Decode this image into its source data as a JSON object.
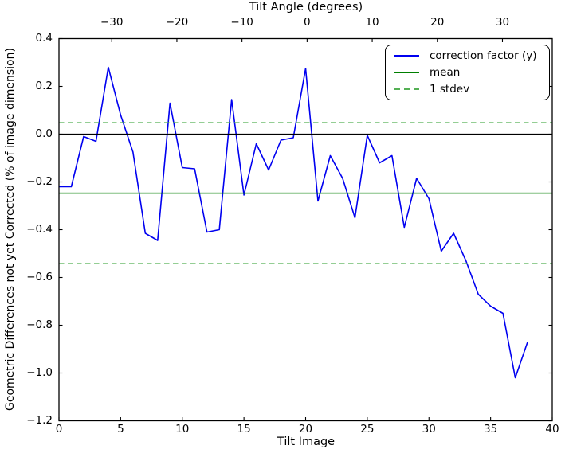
{
  "figure_title": "Tilt Angle (degrees)",
  "legend": {
    "items": [
      {
        "label": "correction factor (y)",
        "style": "solid",
        "color": "#0000f0"
      },
      {
        "label": "mean",
        "style": "solid",
        "color": "#007f00"
      },
      {
        "label": "1 stdev",
        "style": "dashed",
        "color": "#55b055"
      }
    ]
  },
  "chart_data": {
    "type": "line",
    "title": "",
    "xlabel": "Tilt Image",
    "ylabel": "Geometric Differences not yet Corrected (% of image dimension)",
    "xlim": [
      0,
      40
    ],
    "ylim": [
      -1.2,
      0.4
    ],
    "grid": false,
    "legend_position": "upper right",
    "colors": {
      "series": "#0000f0",
      "mean_line": "#007f00",
      "stdev_line": "#55b055",
      "zero_line": "#000000",
      "frame": "#000000",
      "background": "#ffffff"
    },
    "x_ticks": {
      "values": [
        0,
        5,
        10,
        15,
        20,
        25,
        30,
        35,
        40
      ],
      "labels": [
        "0",
        "5",
        "10",
        "15",
        "20",
        "25",
        "30",
        "35",
        "40"
      ]
    },
    "y_ticks": {
      "values": [
        0.4,
        0.2,
        0.0,
        -0.2,
        -0.4,
        -0.6,
        -0.8,
        -1.0,
        -1.2
      ],
      "labels": [
        "0.4",
        "0.2",
        "0.0",
        "−0.2",
        "−0.4",
        "−0.6",
        "−0.8",
        "−1.0",
        "−1.2"
      ]
    },
    "top_axis": {
      "label": "Tilt Angle (degrees)",
      "tick_labels": [
        "−30",
        "−20",
        "−10",
        "0",
        "10",
        "20",
        "30"
      ],
      "tick_values_degrees": [
        -30,
        -20,
        -10,
        0,
        10,
        20,
        30
      ],
      "tick_positions_in_x_units": [
        4.28,
        9.56,
        14.84,
        20.12,
        25.4,
        30.68,
        35.96
      ]
    },
    "series": [
      {
        "name": "correction factor (y)",
        "x": [
          0,
          1,
          2,
          3,
          4,
          5,
          6,
          7,
          8,
          9,
          10,
          11,
          12,
          13,
          14,
          15,
          16,
          17,
          18,
          19,
          20,
          21,
          22,
          23,
          24,
          25,
          26,
          27,
          28,
          29,
          30,
          31,
          32,
          33,
          34,
          35,
          36,
          37,
          38
        ],
        "y": [
          -0.22,
          -0.22,
          -0.01,
          -0.03,
          0.28,
          0.08,
          -0.075,
          -0.415,
          -0.445,
          0.13,
          -0.14,
          -0.145,
          -0.41,
          -0.4,
          0.145,
          -0.255,
          -0.04,
          -0.15,
          -0.025,
          -0.015,
          0.275,
          -0.28,
          -0.09,
          -0.185,
          -0.35,
          -0.005,
          -0.12,
          -0.09,
          -0.39,
          -0.185,
          -0.27,
          -0.49,
          -0.415,
          -0.53,
          -0.67,
          -0.72,
          -0.75,
          -1.02,
          -0.87
        ]
      }
    ],
    "reference_lines": {
      "zero": 0.0,
      "mean": -0.247,
      "stdev": 0.295,
      "stdev_upper": 0.048,
      "stdev_lower": -0.542
    }
  }
}
